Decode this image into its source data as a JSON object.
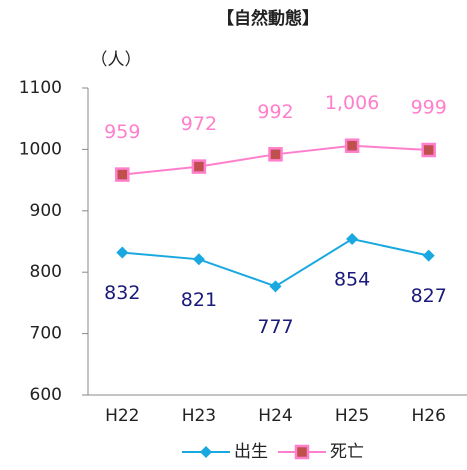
{
  "chart_data": {
    "type": "line",
    "title": "【自然動態】",
    "y_label": "（人）",
    "categories": [
      "H22",
      "H23",
      "H24",
      "H25",
      "H26"
    ],
    "series": [
      {
        "name": "出生",
        "color": "#1aa8e0",
        "marker": "diamond",
        "label_color": "#1a1a7a",
        "label_position": "below",
        "values": [
          832,
          821,
          777,
          854,
          827
        ]
      },
      {
        "name": "死亡",
        "color": "#ff7fcc",
        "marker": "square",
        "marker_fill": "#c0504d",
        "label_color": "#ff7fcc",
        "label_position": "above",
        "values": [
          959,
          972,
          992,
          1006,
          999
        ],
        "value_labels": [
          "959",
          "972",
          "992",
          "1,006",
          "999"
        ]
      }
    ],
    "ylim": [
      600,
      1100
    ],
    "yticks": [
      600,
      700,
      800,
      900,
      1000,
      1100
    ],
    "grid": false,
    "legend": "bottom"
  }
}
